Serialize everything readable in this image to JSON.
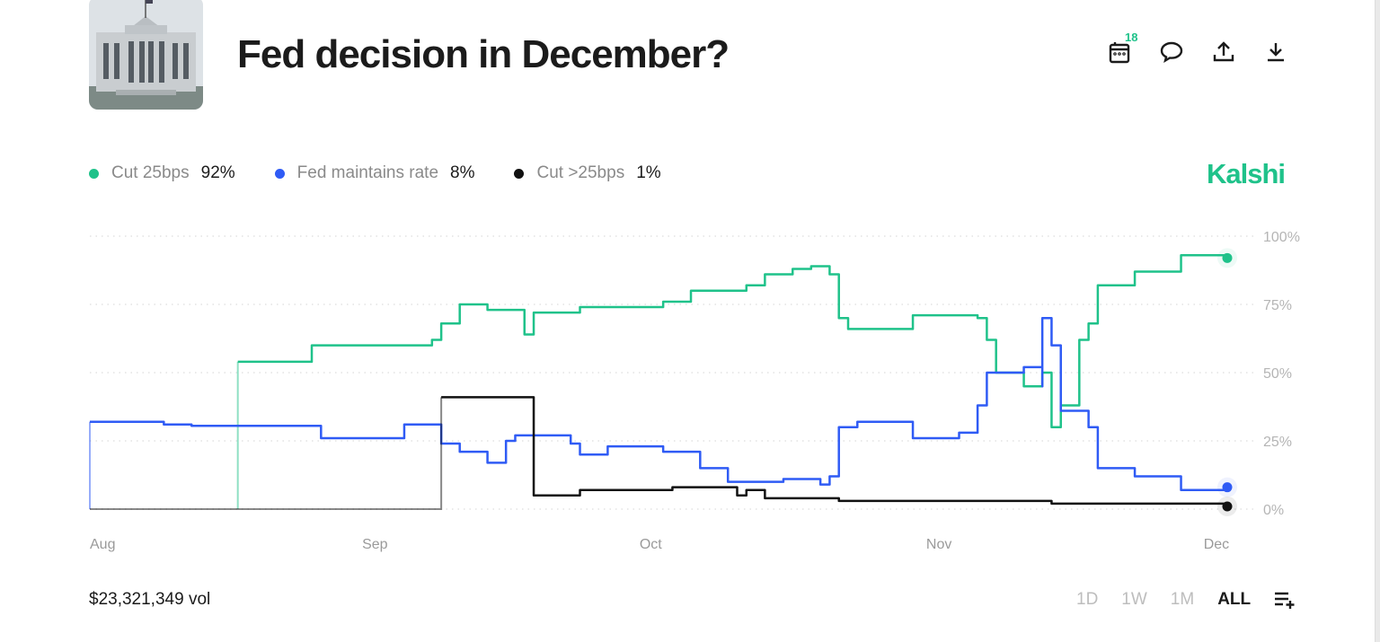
{
  "header": {
    "title": "Fed decision in December?",
    "notification_count": "18",
    "icons": [
      "calendar-icon",
      "comment-icon",
      "share-icon",
      "download-icon"
    ]
  },
  "legend": [
    {
      "name": "Cut 25bps",
      "value": "92%",
      "color": "#1fc28a"
    },
    {
      "name": "Fed maintains rate",
      "value": "8%",
      "color": "#2f5bf5"
    },
    {
      "name": "Cut >25bps",
      "value": "1%",
      "color": "#111111"
    }
  ],
  "brand": "Kalshi",
  "footer": {
    "volume": "$23,321,349 vol",
    "ranges": [
      "1D",
      "1W",
      "1M",
      "ALL"
    ],
    "selected_range": "ALL"
  },
  "chart_data": {
    "type": "line",
    "step": true,
    "x_ticks": [
      "Aug",
      "Sep",
      "Oct",
      "Nov",
      "Dec"
    ],
    "x_tick_dates": [
      "2024-08-01",
      "2024-09-01",
      "2024-10-01",
      "2024-11-01",
      "2024-12-01"
    ],
    "xlim": [
      "2024-08-01",
      "2024-12-02"
    ],
    "y_ticks": [
      "0%",
      "25%",
      "50%",
      "75%",
      "100%"
    ],
    "ylim": [
      0,
      100
    ],
    "grid": "horizontal-dotted",
    "y_axis": "right",
    "series": [
      {
        "name": "Cut 25bps",
        "color": "#1fc28a",
        "points": [
          [
            "2024-08-17",
            0
          ],
          [
            "2024-08-17",
            54
          ],
          [
            "2024-08-25",
            60
          ],
          [
            "2024-09-07",
            62
          ],
          [
            "2024-09-08",
            68
          ],
          [
            "2024-09-10",
            75
          ],
          [
            "2024-09-13",
            73
          ],
          [
            "2024-09-17",
            72
          ],
          [
            "2024-09-17",
            64
          ],
          [
            "2024-09-18",
            72
          ],
          [
            "2024-09-23",
            74
          ],
          [
            "2024-10-02",
            76
          ],
          [
            "2024-10-05",
            80
          ],
          [
            "2024-10-11",
            82
          ],
          [
            "2024-10-13",
            86
          ],
          [
            "2024-10-16",
            88
          ],
          [
            "2024-10-18",
            89
          ],
          [
            "2024-10-20",
            86
          ],
          [
            "2024-10-21",
            70
          ],
          [
            "2024-10-22",
            66
          ],
          [
            "2024-10-29",
            71
          ],
          [
            "2024-11-05",
            70
          ],
          [
            "2024-11-06",
            62
          ],
          [
            "2024-11-07",
            50
          ],
          [
            "2024-11-10",
            45
          ],
          [
            "2024-11-12",
            50
          ],
          [
            "2024-11-13",
            30
          ],
          [
            "2024-11-14",
            38
          ],
          [
            "2024-11-16",
            62
          ],
          [
            "2024-11-17",
            68
          ],
          [
            "2024-11-18",
            82
          ],
          [
            "2024-11-22",
            87
          ],
          [
            "2024-11-27",
            93
          ],
          [
            "2024-12-02",
            92
          ]
        ]
      },
      {
        "name": "Fed maintains rate",
        "color": "#2f5bf5",
        "points": [
          [
            "2024-08-01",
            0
          ],
          [
            "2024-08-01",
            32
          ],
          [
            "2024-08-09",
            31
          ],
          [
            "2024-08-12",
            30.5
          ],
          [
            "2024-08-26",
            26
          ],
          [
            "2024-09-04",
            31
          ],
          [
            "2024-09-08",
            24
          ],
          [
            "2024-09-10",
            21
          ],
          [
            "2024-09-13",
            17
          ],
          [
            "2024-09-15",
            25
          ],
          [
            "2024-09-16",
            27
          ],
          [
            "2024-09-22",
            24
          ],
          [
            "2024-09-23",
            20
          ],
          [
            "2024-09-26",
            23
          ],
          [
            "2024-10-02",
            21
          ],
          [
            "2024-10-06",
            15
          ],
          [
            "2024-10-09",
            10
          ],
          [
            "2024-10-15",
            11
          ],
          [
            "2024-10-19",
            9
          ],
          [
            "2024-10-20",
            12
          ],
          [
            "2024-10-21",
            30
          ],
          [
            "2024-10-23",
            32
          ],
          [
            "2024-10-29",
            26
          ],
          [
            "2024-11-03",
            28
          ],
          [
            "2024-11-05",
            38
          ],
          [
            "2024-11-06",
            50
          ],
          [
            "2024-11-10",
            52
          ],
          [
            "2024-11-12",
            45
          ],
          [
            "2024-11-12",
            70
          ],
          [
            "2024-11-13",
            60
          ],
          [
            "2024-11-14",
            36
          ],
          [
            "2024-11-17",
            30
          ],
          [
            "2024-11-18",
            15
          ],
          [
            "2024-11-22",
            12
          ],
          [
            "2024-11-27",
            7
          ],
          [
            "2024-12-02",
            8
          ]
        ]
      },
      {
        "name": "Cut >25bps",
        "color": "#111111",
        "points": [
          [
            "2024-08-01",
            0
          ],
          [
            "2024-09-08",
            0
          ],
          [
            "2024-09-08",
            41
          ],
          [
            "2024-09-18",
            5
          ],
          [
            "2024-09-23",
            7
          ],
          [
            "2024-10-03",
            8
          ],
          [
            "2024-10-10",
            5
          ],
          [
            "2024-10-11",
            7
          ],
          [
            "2024-10-13",
            4
          ],
          [
            "2024-10-19",
            4
          ],
          [
            "2024-10-21",
            3
          ],
          [
            "2024-11-13",
            2
          ],
          [
            "2024-12-02",
            1
          ]
        ]
      }
    ]
  }
}
